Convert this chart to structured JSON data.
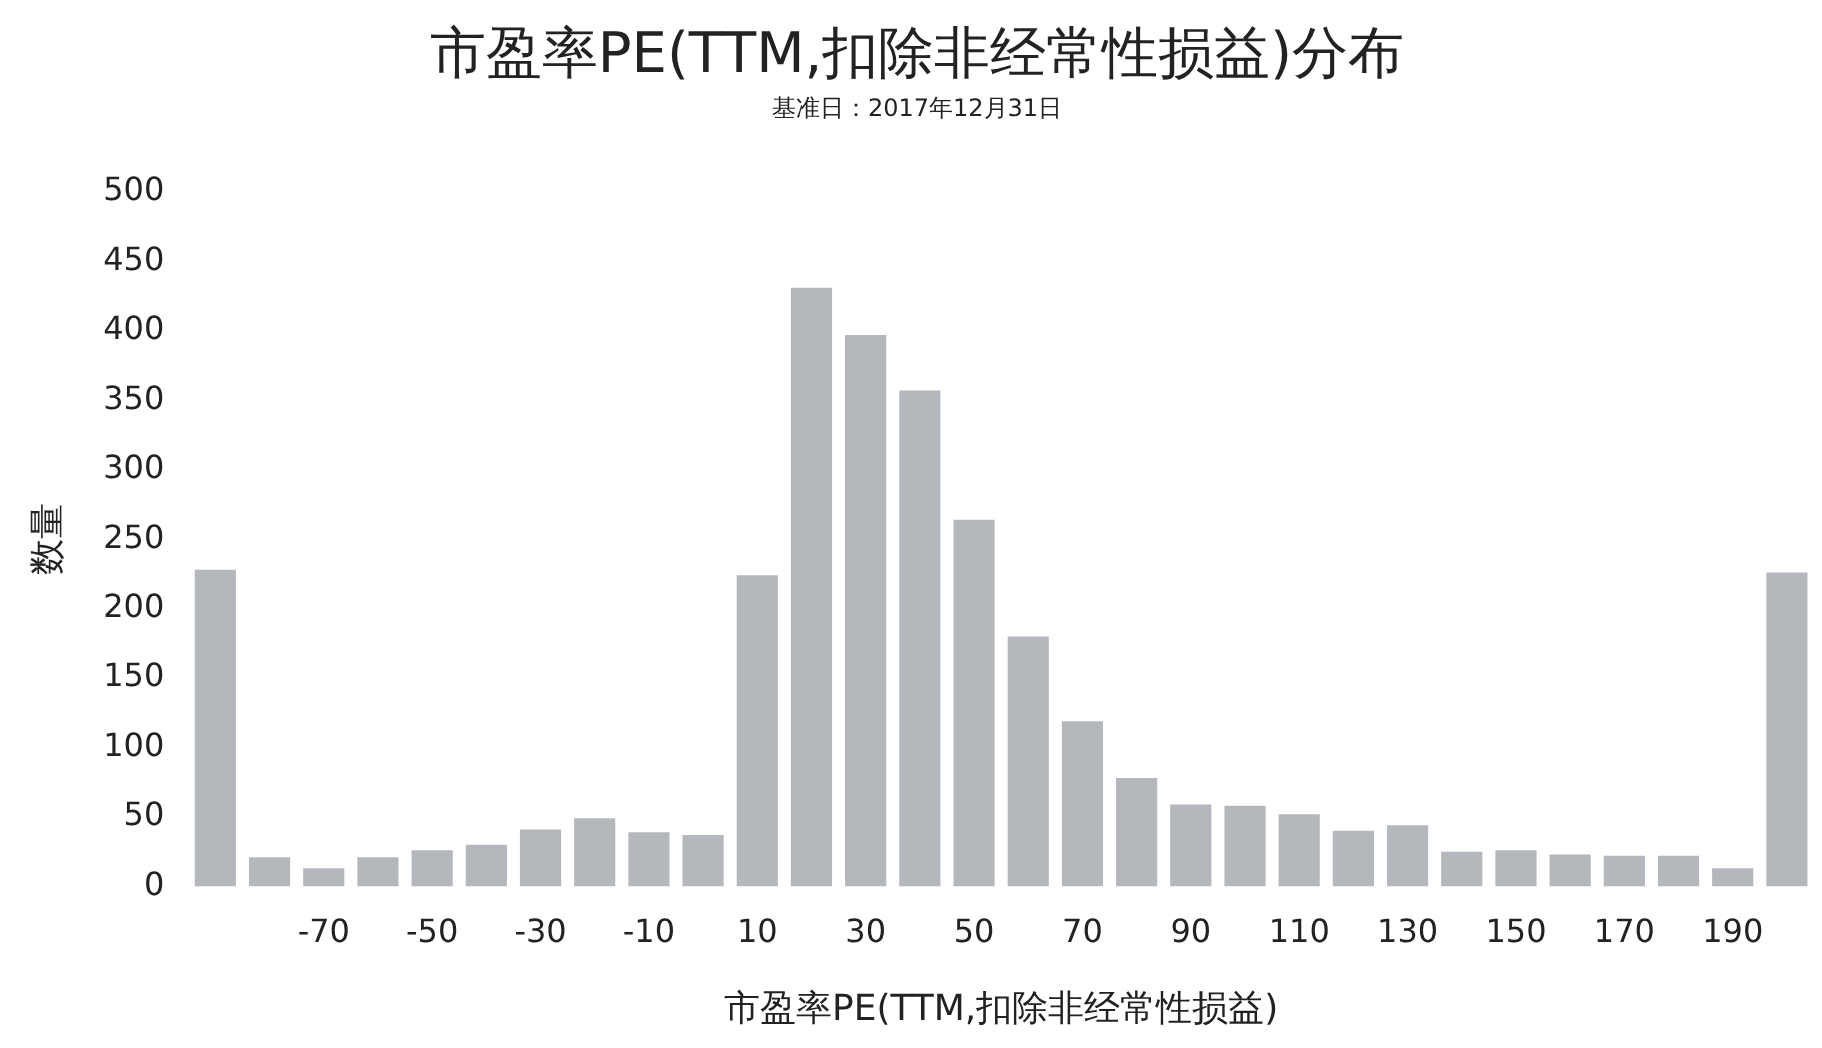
{
  "chart_data": {
    "type": "bar",
    "title": "市盈率PE(TTM,扣除非经常性损益)分布",
    "subtitle": "基准日：2017年12月31日",
    "xlabel": "市盈率PE(TTM,扣除非经常性损益)",
    "ylabel": "数量",
    "categories": [
      null,
      null,
      "-70",
      null,
      "-50",
      null,
      "-30",
      null,
      "-10",
      null,
      "10",
      null,
      "30",
      null,
      "50",
      null,
      "70",
      null,
      "90",
      null,
      "110",
      null,
      "130",
      null,
      "150",
      null,
      "170",
      null,
      "190",
      null
    ],
    "values": [
      228,
      21,
      13,
      21,
      26,
      30,
      41,
      49,
      39,
      37,
      224,
      431,
      397,
      357,
      264,
      180,
      119,
      78,
      59,
      58,
      52,
      40,
      44,
      25,
      26,
      23,
      22,
      22,
      13,
      226
    ],
    "color": "#b4b8bc",
    "ylim": [
      0,
      500
    ],
    "yticks": [
      0,
      50,
      100,
      150,
      200,
      250,
      300,
      350,
      400,
      450,
      500
    ],
    "grid": false,
    "legend": false
  }
}
